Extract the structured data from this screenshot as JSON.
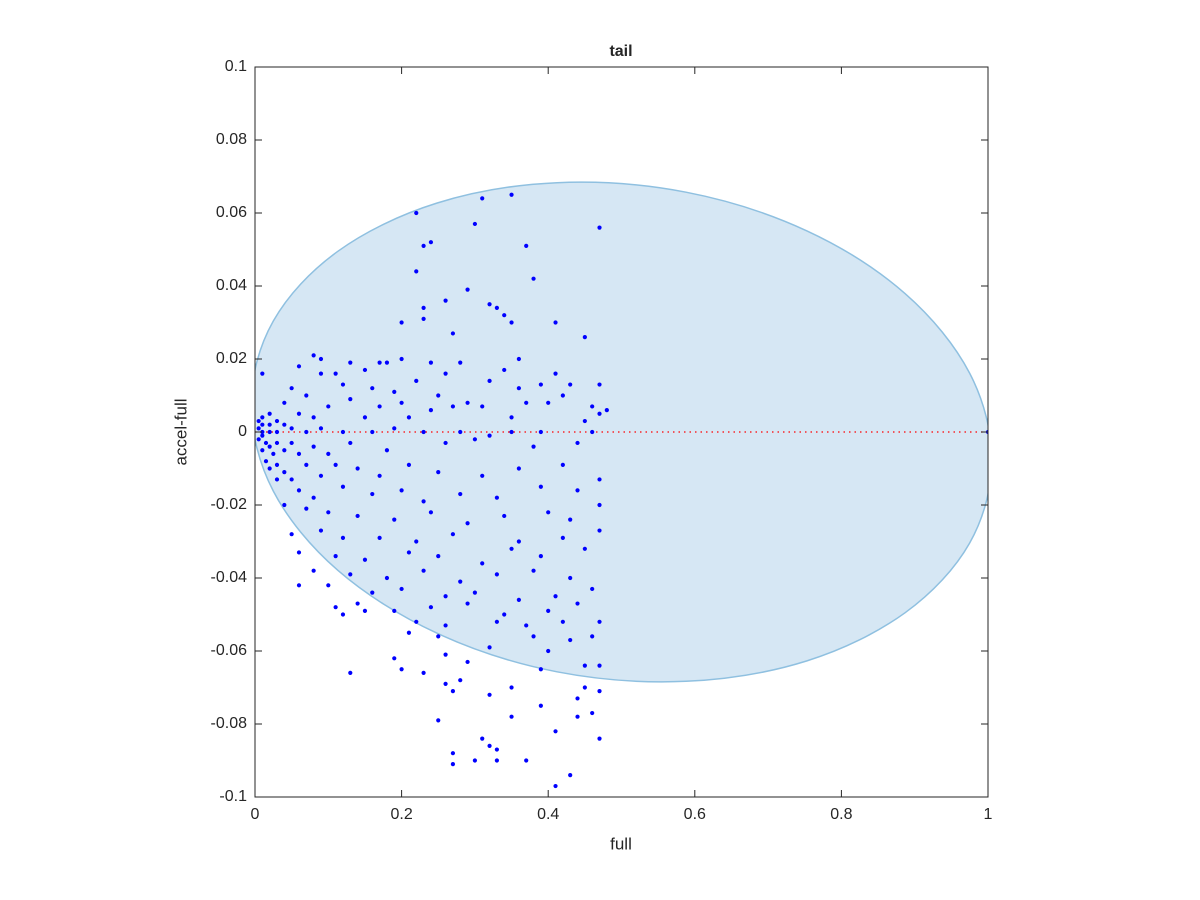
{
  "chart_data": {
    "type": "scatter",
    "title": "tail",
    "x_label": "full",
    "y_label": "accel-full",
    "xlim": [
      0,
      1
    ],
    "ylim": [
      -0.1,
      0.1
    ],
    "xticks": [
      0,
      0.2,
      0.4,
      0.6,
      0.8,
      1
    ],
    "yticks": [
      -0.1,
      -0.08,
      -0.06,
      -0.04,
      -0.02,
      0,
      0.02,
      0.04,
      0.06,
      0.08,
      0.1
    ],
    "series": [
      {
        "type": "area",
        "color": "#d6e7f4",
        "edge_color": "#8fc0e0",
        "x": [
          1.005,
          0.975,
          0.887,
          0.753,
          0.588,
          0.412,
          0.248,
          0.113,
          0.025,
          -0.005,
          0.025,
          0.113,
          0.248,
          0.412,
          0.588,
          0.753,
          0.887,
          0.975
        ],
        "values": [
          -0.0076,
          0.0161,
          0.0379,
          0.0551,
          0.0657,
          0.0683,
          0.0627,
          0.0495,
          0.0304,
          0.0076,
          -0.0162,
          -0.0379,
          -0.0551,
          -0.0657,
          -0.0683,
          -0.0627,
          -0.0495,
          -0.0304
        ]
      },
      {
        "type": "line",
        "color": "#ff0000",
        "x": [
          0,
          1
        ],
        "values": [
          0,
          0
        ]
      },
      {
        "type": "scatter",
        "color": "#0000ff",
        "x": [
          0.22,
          0.31,
          0.35,
          0.47,
          0.3,
          0.24,
          0.23,
          0.37,
          0.22,
          0.38,
          0.29,
          0.26,
          0.23,
          0.32,
          0.33,
          0.34,
          0.35,
          0.2,
          0.23,
          0.41,
          0.27,
          0.45,
          0.2,
          0.08,
          0.09,
          0.06,
          0.13,
          0.17,
          0.18,
          0.24,
          0.28,
          0.36,
          0.01,
          0.09,
          0.11,
          0.15,
          0.26,
          0.34,
          0.41,
          0.43,
          0.47,
          0.39,
          0.32,
          0.22,
          0.12,
          0.05,
          0.16,
          0.19,
          0.36,
          0.07,
          0.25,
          0.42,
          0.29,
          0.13,
          0.2,
          0.31,
          0.37,
          0.4,
          0.46,
          0.04,
          0.1,
          0.17,
          0.24,
          0.27,
          0.48,
          0.47,
          0.06,
          0.08,
          0.15,
          0.21,
          0.35,
          0.45,
          0.02,
          0.01,
          0.005,
          0.01,
          0.02,
          0.03,
          0.04,
          0.005,
          0.01,
          0.02,
          0.03,
          0.05,
          0.07,
          0.09,
          0.12,
          0.16,
          0.19,
          0.23,
          0.28,
          0.32,
          0.35,
          0.39,
          0.46,
          0.01,
          0.005,
          0.015,
          0.02,
          0.01,
          0.025,
          0.03,
          0.04,
          0.05,
          0.06,
          0.08,
          0.1,
          0.13,
          0.18,
          0.26,
          0.3,
          0.38,
          0.44,
          0.015,
          0.02,
          0.03,
          0.04,
          0.05,
          0.07,
          0.09,
          0.11,
          0.14,
          0.17,
          0.21,
          0.25,
          0.31,
          0.36,
          0.42,
          0.47,
          0.03,
          0.06,
          0.08,
          0.12,
          0.16,
          0.2,
          0.23,
          0.28,
          0.33,
          0.39,
          0.44,
          0.47,
          0.04,
          0.07,
          0.1,
          0.14,
          0.19,
          0.24,
          0.29,
          0.34,
          0.4,
          0.43,
          0.05,
          0.09,
          0.12,
          0.17,
          0.22,
          0.27,
          0.36,
          0.42,
          0.47,
          0.06,
          0.11,
          0.15,
          0.21,
          0.25,
          0.31,
          0.35,
          0.39,
          0.45,
          0.08,
          0.13,
          0.18,
          0.23,
          0.28,
          0.33,
          0.38,
          0.43,
          0.06,
          0.1,
          0.16,
          0.2,
          0.26,
          0.3,
          0.36,
          0.41,
          0.46,
          0.11,
          0.14,
          0.19,
          0.24,
          0.29,
          0.34,
          0.4,
          0.44,
          0.12,
          0.15,
          0.22,
          0.26,
          0.33,
          0.37,
          0.42,
          0.47,
          0.21,
          0.25,
          0.32,
          0.38,
          0.43,
          0.46,
          0.19,
          0.26,
          0.29,
          0.4,
          0.45,
          0.47,
          0.13,
          0.2,
          0.23,
          0.28,
          0.39,
          0.26,
          0.27,
          0.35,
          0.45,
          0.47,
          0.32,
          0.44,
          0.25,
          0.35,
          0.39,
          0.44,
          0.46,
          0.31,
          0.32,
          0.33,
          0.47,
          0.27,
          0.27,
          0.3,
          0.33,
          0.37,
          0.41,
          0.41,
          0.43,
          1
        ],
        "values": [
          0.06,
          0.064,
          0.065,
          0.056,
          0.057,
          0.052,
          0.051,
          0.051,
          0.044,
          0.042,
          0.039,
          0.036,
          0.034,
          0.035,
          0.034,
          0.032,
          0.03,
          0.03,
          0.031,
          0.03,
          0.027,
          0.026,
          0.02,
          0.021,
          0.02,
          0.018,
          0.019,
          0.019,
          0.019,
          0.019,
          0.019,
          0.02,
          0.016,
          0.016,
          0.016,
          0.017,
          0.016,
          0.017,
          0.016,
          0.013,
          0.013,
          0.013,
          0.014,
          0.014,
          0.013,
          0.012,
          0.012,
          0.011,
          0.012,
          0.01,
          0.01,
          0.01,
          0.008,
          0.009,
          0.008,
          0.007,
          0.008,
          0.008,
          0.007,
          0.008,
          0.007,
          0.007,
          0.006,
          0.007,
          0.006,
          0.005,
          0.005,
          0.004,
          0.004,
          0.004,
          0.004,
          0.003,
          0.005,
          0.004,
          0.003,
          0.002,
          0.002,
          0.003,
          0.002,
          0.001,
          0,
          0,
          0,
          0.001,
          0,
          0.001,
          0,
          0,
          0.001,
          0,
          0,
          -0.001,
          0,
          0,
          0,
          -0.001,
          -0.002,
          -0.003,
          -0.004,
          -0.005,
          -0.006,
          -0.003,
          -0.005,
          -0.003,
          -0.006,
          -0.004,
          -0.006,
          -0.003,
          -0.005,
          -0.003,
          -0.002,
          -0.004,
          -0.003,
          -0.008,
          -0.01,
          -0.009,
          -0.011,
          -0.013,
          -0.009,
          -0.012,
          -0.009,
          -0.01,
          -0.012,
          -0.009,
          -0.011,
          -0.012,
          -0.01,
          -0.009,
          -0.013,
          -0.013,
          -0.016,
          -0.018,
          -0.015,
          -0.017,
          -0.016,
          -0.019,
          -0.017,
          -0.018,
          -0.015,
          -0.016,
          -0.02,
          -0.02,
          -0.021,
          -0.022,
          -0.023,
          -0.024,
          -0.022,
          -0.025,
          -0.023,
          -0.022,
          -0.024,
          -0.028,
          -0.027,
          -0.029,
          -0.029,
          -0.03,
          -0.028,
          -0.03,
          -0.029,
          -0.027,
          -0.033,
          -0.034,
          -0.035,
          -0.033,
          -0.034,
          -0.036,
          -0.032,
          -0.034,
          -0.032,
          -0.038,
          -0.039,
          -0.04,
          -0.038,
          -0.041,
          -0.039,
          -0.038,
          -0.04,
          -0.042,
          -0.042,
          -0.044,
          -0.043,
          -0.045,
          -0.044,
          -0.046,
          -0.045,
          -0.043,
          -0.048,
          -0.047,
          -0.049,
          -0.048,
          -0.047,
          -0.05,
          -0.049,
          -0.047,
          -0.05,
          -0.049,
          -0.052,
          -0.053,
          -0.052,
          -0.053,
          -0.052,
          -0.052,
          -0.055,
          -0.056,
          -0.059,
          -0.056,
          -0.057,
          -0.056,
          -0.062,
          -0.061,
          -0.063,
          -0.06,
          -0.064,
          -0.064,
          -0.066,
          -0.065,
          -0.066,
          -0.068,
          -0.065,
          -0.069,
          -0.071,
          -0.07,
          -0.07,
          -0.071,
          -0.072,
          -0.073,
          -0.079,
          -0.078,
          -0.075,
          -0.078,
          -0.077,
          -0.084,
          -0.086,
          -0.087,
          -0.084,
          -0.088,
          -0.091,
          -0.09,
          -0.09,
          -0.09,
          -0.082,
          -0.097,
          -0.094,
          0
        ]
      }
    ]
  }
}
